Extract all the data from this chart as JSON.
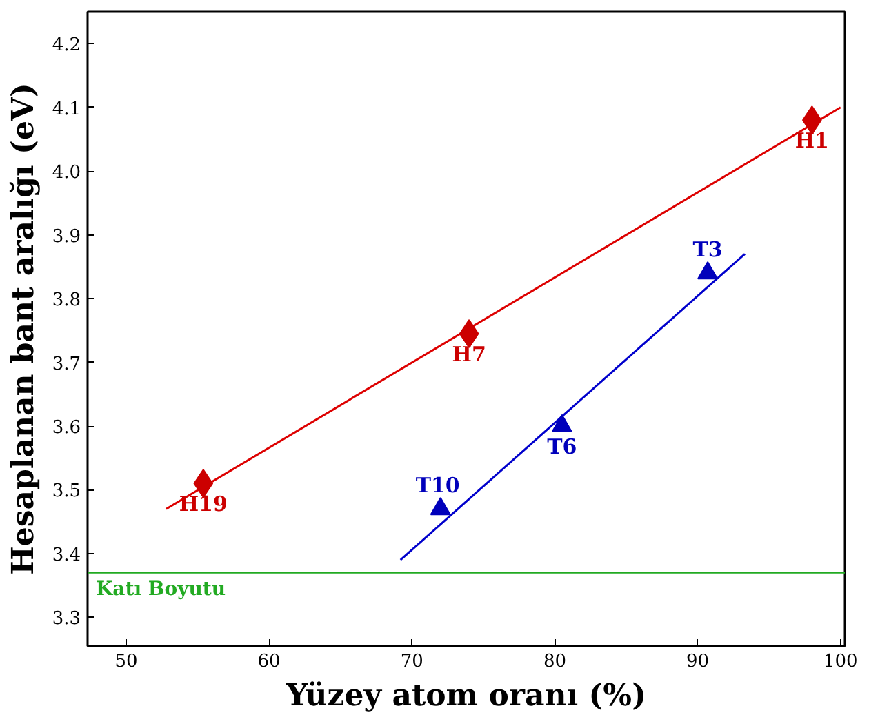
{
  "chart_data": {
    "type": "scatter",
    "xlabel": "Yüzey atom oranı (%)",
    "ylabel": "Hesaplanan bant aralığı (eV)",
    "xlim": [
      47.3,
      100.3
    ],
    "ylim": [
      3.255,
      4.25
    ],
    "xticks": [
      50,
      60,
      70,
      80,
      90,
      100
    ],
    "yticks": [
      {
        "value": 3.3,
        "label": "3.3"
      },
      {
        "value": 3.4,
        "label": "3.4"
      },
      {
        "value": 3.5,
        "label": "3.5"
      },
      {
        "value": 3.6,
        "label": "3.6"
      },
      {
        "value": 3.7,
        "label": "3.7"
      },
      {
        "value": 3.8,
        "label": "3.8"
      },
      {
        "value": 3.9,
        "label": "3.9"
      },
      {
        "value": 4.0,
        "label": "4.0"
      },
      {
        "value": 4.1,
        "label": "4.1"
      },
      {
        "value": 4.2,
        "label": "4.2"
      }
    ],
    "grid": false,
    "series": [
      {
        "type": "line",
        "color": "#dd0000",
        "x": [
          52.8,
          100
        ],
        "values": [
          3.47,
          4.1
        ],
        "marker": "none"
      },
      {
        "type": "line",
        "color": "#0000cc",
        "x": [
          69.2,
          93.3
        ],
        "values": [
          3.39,
          3.87
        ],
        "marker": "none"
      },
      {
        "color": "#cc0000",
        "marker": "diamond",
        "x": [
          98,
          74,
          55.4
        ],
        "values": [
          4.08,
          3.745,
          3.51
        ]
      },
      {
        "color": "#0000bb",
        "marker": "triangle",
        "x": [
          90.7,
          80.5,
          72
        ],
        "values": [
          3.84,
          3.6,
          3.47
        ]
      }
    ],
    "ref_lines": [
      {
        "axis": "y",
        "value": 3.37,
        "label": "Katı Boyutu",
        "color": "#22aa22"
      }
    ],
    "annotations": [
      {
        "text": "H1",
        "x": 98,
        "y": 4.08
      },
      {
        "text": "H7",
        "x": 74,
        "y": 3.745
      },
      {
        "text": "H19",
        "x": 55.4,
        "y": 3.51
      },
      {
        "text": "T3",
        "x": 90.7,
        "y": 3.84
      },
      {
        "text": "T6",
        "x": 80.5,
        "y": 3.6
      },
      {
        "text": "T10",
        "x": 72,
        "y": 3.47
      }
    ]
  }
}
